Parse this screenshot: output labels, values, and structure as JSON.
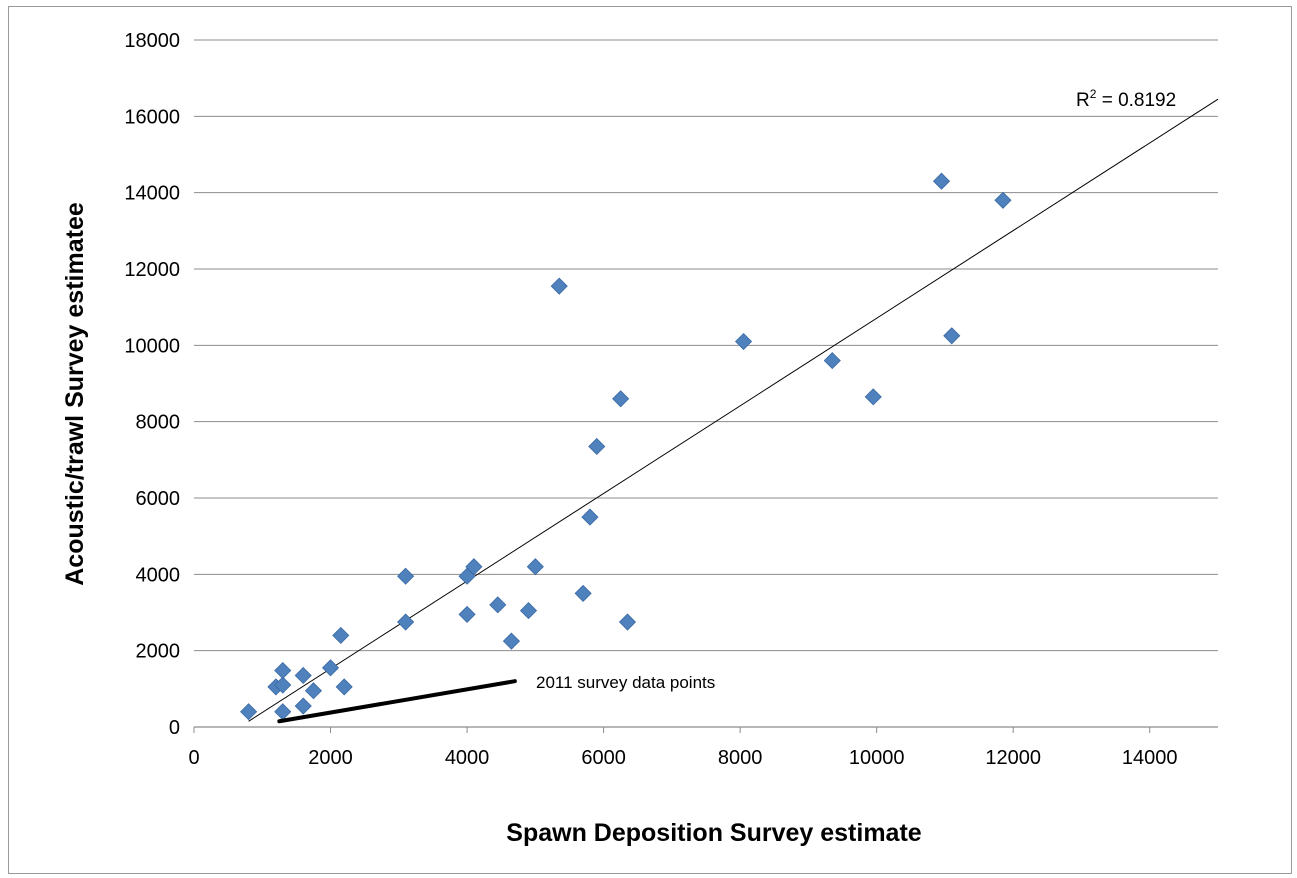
{
  "chart_data": {
    "type": "scatter",
    "xlabel": "Spawn Deposition Survey estimate",
    "ylabel": "Acoustic/trawl Survey estimatee",
    "xlim": [
      0,
      15000
    ],
    "ylim": [
      0,
      18000
    ],
    "xticks": [
      0,
      2000,
      4000,
      6000,
      8000,
      10000,
      12000,
      14000
    ],
    "yticks": [
      0,
      2000,
      4000,
      6000,
      8000,
      10000,
      12000,
      14000,
      16000,
      18000
    ],
    "grid": "horizontal",
    "marker_color": "#4f81bd",
    "series": [
      {
        "points": [
          [
            800,
            400
          ],
          [
            1200,
            1050
          ],
          [
            1300,
            1100
          ],
          [
            1300,
            1480
          ],
          [
            1300,
            400
          ],
          [
            1600,
            550
          ],
          [
            1600,
            1350
          ],
          [
            1750,
            950
          ],
          [
            2000,
            1550
          ],
          [
            2150,
            2400
          ],
          [
            2200,
            1050
          ],
          [
            3100,
            2750
          ],
          [
            3100,
            3950
          ],
          [
            4000,
            2950
          ],
          [
            4000,
            3950
          ],
          [
            4100,
            4200
          ],
          [
            4450,
            3200
          ],
          [
            4650,
            2250
          ],
          [
            4900,
            3050
          ],
          [
            5000,
            4200
          ],
          [
            5350,
            11550
          ],
          [
            5700,
            3500
          ],
          [
            5800,
            5500
          ],
          [
            5900,
            7350
          ],
          [
            6250,
            8600
          ],
          [
            6350,
            2750
          ],
          [
            8050,
            10100
          ],
          [
            9350,
            9600
          ],
          [
            9950,
            8650
          ],
          [
            10950,
            14300
          ],
          [
            11100,
            10250
          ],
          [
            11850,
            13800
          ]
        ]
      }
    ],
    "trendline": {
      "from": [
        800,
        150
      ],
      "to": [
        15000,
        16450
      ],
      "color": "#000000",
      "label_prefix": "R",
      "label_sup": "2",
      "label_value": " = 0.8192"
    },
    "annotation": {
      "text": "2011 survey data points",
      "arrow_tail": [
        4700,
        1200
      ],
      "arrow_head": [
        1250,
        150
      ]
    }
  }
}
